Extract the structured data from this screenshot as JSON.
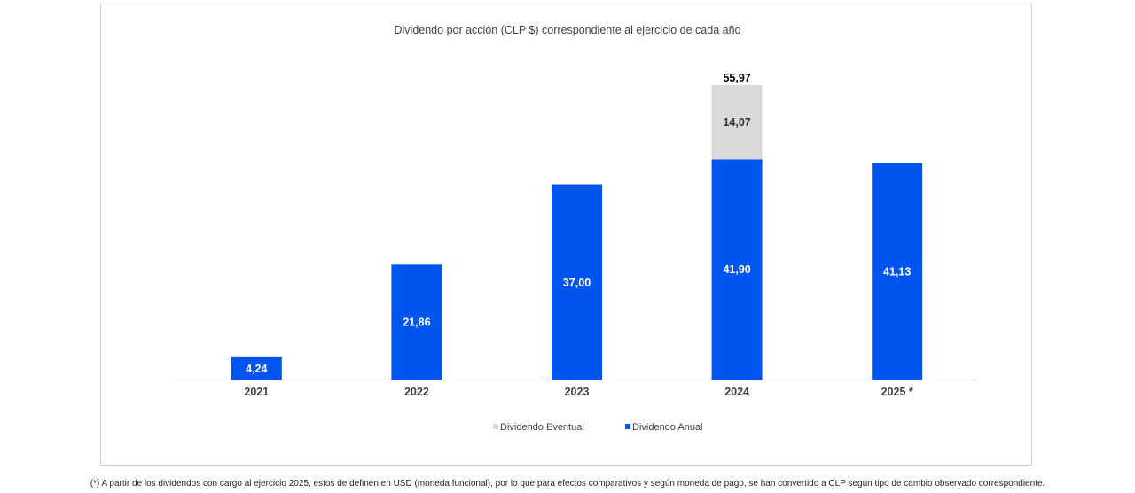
{
  "chart_data": {
    "type": "bar",
    "stacked": true,
    "title": "Dividendo por acción (CLP $) correspondiente al ejercicio de cada año",
    "categories": [
      "2021",
      "2022",
      "2023",
      "2024",
      "2025 *"
    ],
    "series": [
      {
        "name": "Dividendo Anual",
        "color": "#0054f0",
        "label_color": "#ffffff",
        "values": [
          4.24,
          21.86,
          37.0,
          41.9,
          41.13
        ],
        "labels": [
          "4,24",
          "21,86",
          "37,00",
          "41,90",
          "41,13"
        ]
      },
      {
        "name": "Dividendo Eventual",
        "color": "#d9d9d9",
        "label_color": "#333333",
        "values": [
          0,
          0,
          0,
          14.07,
          0
        ],
        "labels": [
          "",
          "",
          "",
          "14,07",
          ""
        ]
      }
    ],
    "totals": {
      "values": [
        null,
        null,
        null,
        55.97,
        null
      ],
      "labels": [
        "",
        "",
        "",
        "55,97",
        ""
      ]
    },
    "ylim": [
      0,
      56
    ],
    "grid": false,
    "legend": {
      "position": "bottom",
      "order": [
        "Dividendo Eventual",
        "Dividendo Anual"
      ]
    }
  },
  "footnote": "(*) A partir de los dividendos con cargo al ejercicio 2025, estos de definen en USD (moneda funcional), por lo que para efectos comparativos y según moneda de pago, se han convertido a CLP según tipo de cambio observado correspondiente."
}
